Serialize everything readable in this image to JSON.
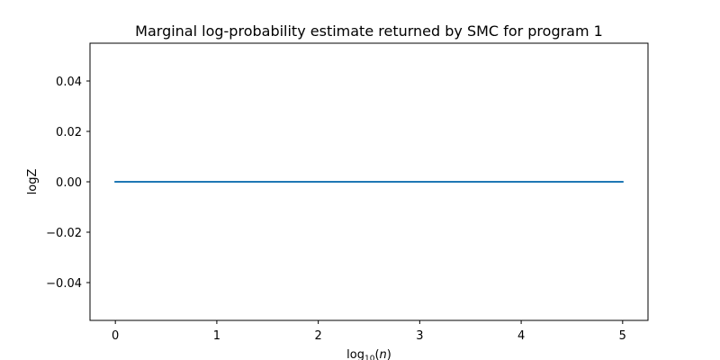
{
  "chart_data": {
    "type": "line",
    "title": "Marginal log-probability estimate returned by SMC for program 1",
    "xlabel": "log10(n)",
    "xlabel_parts": {
      "base": "log",
      "sub": "10",
      "arg": "n"
    },
    "ylabel": "logZ",
    "xlim": [
      -0.25,
      5.25
    ],
    "ylim": [
      -0.055,
      0.055
    ],
    "xticks": [
      0,
      1,
      2,
      3,
      4,
      5
    ],
    "xtick_labels": [
      "0",
      "1",
      "2",
      "3",
      "4",
      "5"
    ],
    "yticks": [
      -0.04,
      -0.02,
      0.0,
      0.02,
      0.04
    ],
    "ytick_labels": [
      "−0.04",
      "−0.02",
      "0.00",
      "0.02",
      "0.04"
    ],
    "grid": false,
    "series": [
      {
        "color": "#1f77b4",
        "x": [
          0,
          1,
          2,
          3,
          4,
          5
        ],
        "y": [
          0,
          0,
          0,
          0,
          0,
          0
        ]
      }
    ]
  }
}
